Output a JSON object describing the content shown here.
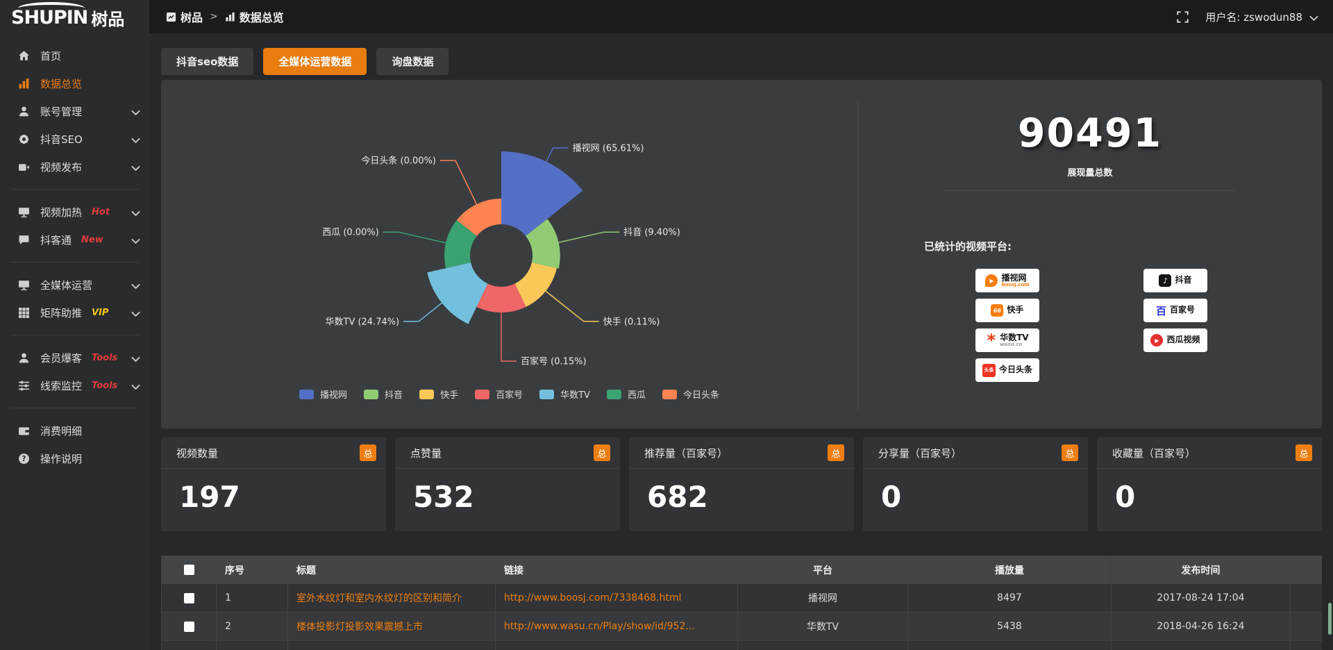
{
  "brand": {
    "name_en": "SHUPIN",
    "name_cn": "树品"
  },
  "topbar": {
    "breadcrumb": [
      {
        "label": "树品",
        "icon": "app"
      },
      {
        "label": "数据总览",
        "icon": "bar-chart"
      }
    ],
    "username": "用户名: zswodun88"
  },
  "sidebar": {
    "items": [
      {
        "key": "home",
        "label": "首页",
        "icon": "home"
      },
      {
        "key": "data-overview",
        "label": "数据总览",
        "icon": "bar-chart",
        "active": true
      },
      {
        "key": "account-manage",
        "label": "账号管理",
        "icon": "user",
        "expandable": true
      },
      {
        "key": "douyin-seo",
        "label": "抖音SEO",
        "icon": "gear",
        "expandable": true
      },
      {
        "key": "video-publish",
        "label": "视频发布",
        "icon": "video-camera",
        "expandable": true,
        "divider_after": true
      },
      {
        "key": "video-heat",
        "label": "视频加热",
        "icon": "monitor",
        "tag": "Hot",
        "tag_color": "#e23c3c",
        "expandable": true
      },
      {
        "key": "douketong",
        "label": "抖客通",
        "icon": "chat",
        "tag": "New",
        "tag_color": "#e23c3c",
        "expandable": true,
        "divider_after": true
      },
      {
        "key": "media-operation",
        "label": "全媒体运营",
        "icon": "monitor",
        "expandable": true
      },
      {
        "key": "matrix-boost",
        "label": "矩阵助推",
        "icon": "grid",
        "tag": "VIP",
        "tag_color": "#f3c51f",
        "expandable": true,
        "divider_after": true
      },
      {
        "key": "member-baoke",
        "label": "会员爆客",
        "icon": "user",
        "tag": "Tools",
        "tag_color": "#e23c3c",
        "expandable": true
      },
      {
        "key": "clue-monitor",
        "label": "线索监控",
        "icon": "sliders",
        "tag": "Tools",
        "tag_color": "#e23c3c",
        "expandable": true,
        "divider_after": true
      },
      {
        "key": "expense-detail",
        "label": "消费明细",
        "icon": "wallet"
      },
      {
        "key": "instructions",
        "label": "操作说明",
        "icon": "question"
      }
    ]
  },
  "tabs": [
    {
      "key": "douyin-seo-data",
      "label": "抖音seo数据",
      "active": false
    },
    {
      "key": "media-operation-data",
      "label": "全媒体运营数据",
      "active": true
    },
    {
      "key": "inquiry-data",
      "label": "询盘数据",
      "active": false
    }
  ],
  "chart_data": {
    "type": "pie",
    "variant": "nightingale-rose",
    "labels": [
      "播视网",
      "抖音",
      "快手",
      "百家号",
      "华数TV",
      "西瓜",
      "今日头条"
    ],
    "values_pct": [
      65.61,
      9.4,
      0.11,
      0.15,
      24.74,
      0.0,
      0.0
    ],
    "colors": [
      "#5470c6",
      "#91cc75",
      "#fac858",
      "#ee6666",
      "#73c0de",
      "#3ba272",
      "#fc8452"
    ],
    "label_format": "{name} ({pct}%)",
    "legend": [
      "播视网",
      "抖音",
      "快手",
      "百家号",
      "华数TV",
      "西瓜",
      "今日头条"
    ],
    "legend_position": "bottom"
  },
  "summary": {
    "total": "90491",
    "total_label": "展现量总数",
    "platforms_label": "已统计的视频平台:",
    "platforms": [
      {
        "key": "boosj",
        "name": "播视网",
        "sub": "boosj.com",
        "col": 1
      },
      {
        "key": "kuaishou",
        "name": "快手",
        "col": 1
      },
      {
        "key": "wasu",
        "name": "华数TV",
        "sub": "wasu.cn",
        "col": 1
      },
      {
        "key": "toutiao",
        "name": "今日头条",
        "col": 1
      },
      {
        "key": "douyin",
        "name": "抖音",
        "col": 2
      },
      {
        "key": "baijiahao",
        "name": "百家号",
        "col": 2
      },
      {
        "key": "xigua",
        "name": "西瓜视频",
        "col": 2
      }
    ]
  },
  "stat_cards": [
    {
      "title": "视频数量",
      "badge": "总",
      "value": "197"
    },
    {
      "title": "点赞量",
      "badge": "总",
      "value": "532"
    },
    {
      "title": "推荐量（百家号）",
      "badge": "总",
      "value": "682"
    },
    {
      "title": "分享量（百家号）",
      "badge": "总",
      "value": "0"
    },
    {
      "title": "收藏量（百家号）",
      "badge": "总",
      "value": "0"
    }
  ],
  "table": {
    "headers": [
      "序号",
      "标题",
      "链接",
      "平台",
      "播放量",
      "发布时间"
    ],
    "rows": [
      {
        "no": "1",
        "title": "室外水纹灯和室内水纹灯的区别和简介",
        "link": "http://www.boosj.com/7338468.html",
        "platform": "播视网",
        "views": "8497",
        "time": "2017-08-24 17:04"
      },
      {
        "no": "2",
        "title": "楼体投影灯投影效果震撼上市",
        "link": "http://www.wasu.cn/Play/show/id/952...",
        "platform": "华数TV",
        "views": "5438",
        "time": "2018-04-26 16:24"
      }
    ]
  },
  "colors": {
    "accent": "#ee7e12",
    "tab_active": "#e87c0e",
    "hot_red": "#e23c3c",
    "vip_gold": "#f3c51f"
  }
}
